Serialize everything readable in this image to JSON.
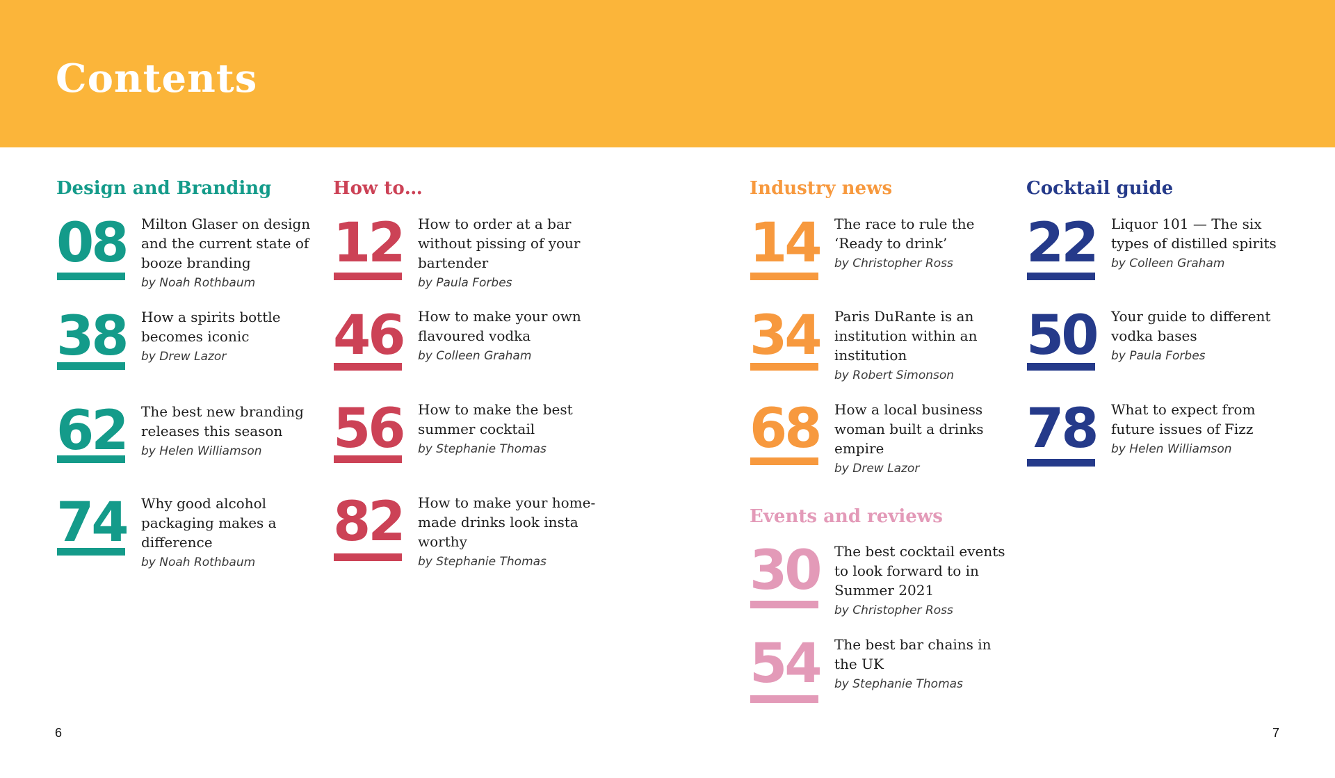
{
  "title": "Contents",
  "colors": {
    "header": "#fbb53a",
    "design": "#149b8a",
    "howto": "#cc4256",
    "industry": "#f7993e",
    "events": "#e39ab8",
    "cocktail": "#253a8a"
  },
  "sections": {
    "design": {
      "title": "Design and Branding",
      "entries": [
        {
          "num": "08",
          "title": "Milton Glaser on design and the current state of booze branding",
          "author": "by Noah Rothbaum"
        },
        {
          "num": "38",
          "title": "How a spirits bottle becomes iconic",
          "author": "by Drew Lazor"
        },
        {
          "num": "62",
          "title": "The best new branding releases this season",
          "author": "by Helen Williamson"
        },
        {
          "num": "74",
          "title": "Why good alcohol packaging makes a difference",
          "author": "by Noah Rothbaum"
        }
      ]
    },
    "howto": {
      "title": "How to…",
      "entries": [
        {
          "num": "12",
          "title": "How to order at a bar without pissing of your bartender",
          "author": "by Paula Forbes"
        },
        {
          "num": "46",
          "title": "How to make your own flavoured vodka",
          "author": "by Colleen Graham"
        },
        {
          "num": "56",
          "title": "How to make the best summer cocktail",
          "author": "by Stephanie Thomas"
        },
        {
          "num": "82",
          "title": "How to make your home-made drinks look insta worthy",
          "author": "by Stephanie Thomas"
        }
      ]
    },
    "industry": {
      "title": "Industry news",
      "entries": [
        {
          "num": "14",
          "title": "The race to rule the ‘Ready to drink’",
          "author": "by Christopher Ross"
        },
        {
          "num": "34",
          "title": "Paris DuRante is an institution within an institution",
          "author": "by Robert Simonson"
        },
        {
          "num": "68",
          "title": "How a local business woman built a drinks empire",
          "author": "by Drew Lazor"
        }
      ]
    },
    "events": {
      "title": "Events and reviews",
      "entries": [
        {
          "num": "30",
          "title": "The best cocktail events to look forward to in Summer 2021",
          "author": "by Christopher Ross"
        },
        {
          "num": "54",
          "title": "The best bar chains in the UK",
          "author": "by Stephanie Thomas"
        }
      ]
    },
    "cocktail": {
      "title": "Cocktail guide",
      "entries": [
        {
          "num": "22",
          "title": "Liquor 101 — The six types of distilled spirits",
          "author": "by Colleen Graham"
        },
        {
          "num": "50",
          "title": "Your guide to different vodka bases",
          "author": "by Paula Forbes"
        },
        {
          "num": "78",
          "title": "What to expect from future issues of Fizz",
          "author": "by Helen Williamson"
        }
      ]
    }
  },
  "page_numbers": {
    "left": "6",
    "right": "7"
  }
}
